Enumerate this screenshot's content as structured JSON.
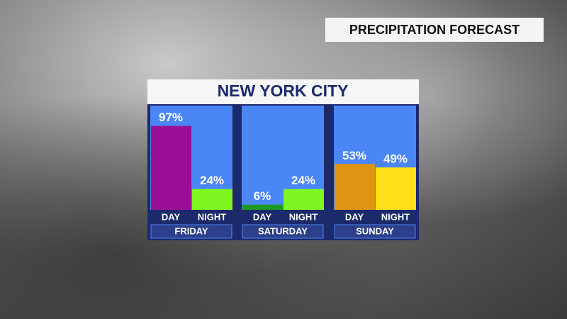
{
  "header": {
    "title": "PRECIPITATION FORECAST"
  },
  "chart_data": {
    "type": "bar",
    "title": "NEW YORK CITY",
    "ylim": [
      0,
      100
    ],
    "groups": [
      {
        "name": "FRIDAY",
        "categories": [
          "DAY",
          "NIGHT"
        ],
        "values": [
          97,
          24
        ],
        "value_labels": [
          "97%",
          "24%"
        ],
        "colors": [
          "#9a0f96",
          "#7ff521"
        ]
      },
      {
        "name": "SATURDAY",
        "categories": [
          "DAY",
          "NIGHT"
        ],
        "values": [
          6,
          24
        ],
        "value_labels": [
          "6%",
          "24%"
        ],
        "colors": [
          "#1c9a22",
          "#7ff521"
        ]
      },
      {
        "name": "SUNDAY",
        "categories": [
          "DAY",
          "NIGHT"
        ],
        "values": [
          53,
          49
        ],
        "value_labels": [
          "53%",
          "49%"
        ],
        "colors": [
          "#de9512",
          "#ffdf1a"
        ]
      }
    ]
  }
}
